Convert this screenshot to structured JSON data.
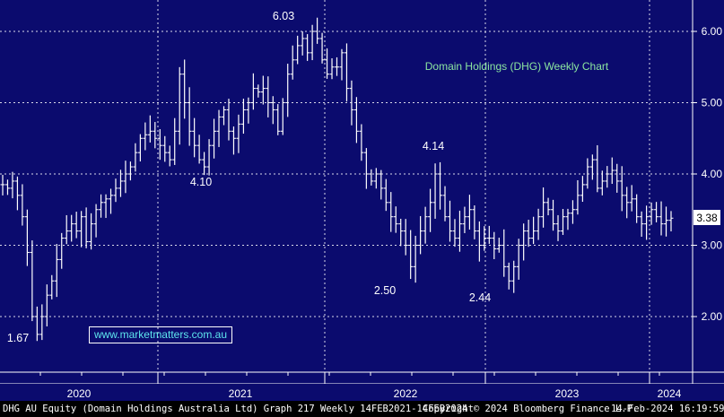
{
  "chart_data": {
    "type": "ohlc",
    "title": "Domain Holdings (DHG) Weekly Chart",
    "watermark": "www.marketmatters.com.au",
    "y_axis": {
      "ticks": [
        "2.00",
        "3.00",
        "4.00",
        "5.00",
        "6.00"
      ],
      "ylim": [
        1.2,
        6.35
      ],
      "side": "right"
    },
    "x_axis": {
      "year_labels": [
        "2020",
        "2021",
        "2022",
        "2023",
        "2024"
      ],
      "xlim": [
        "2020-01",
        "2024-02"
      ]
    },
    "last_price": "3.38",
    "annotations": [
      {
        "text": "1.67",
        "date": "2020-03",
        "value": 1.67
      },
      {
        "text": "4.10",
        "date": "2020-10",
        "value": 4.1
      },
      {
        "text": "6.03",
        "date": "2021-05",
        "value": 6.03
      },
      {
        "text": "4.14",
        "date": "2022-02",
        "value": 4.14
      },
      {
        "text": "2.50",
        "date": "2022-09",
        "value": 2.5
      },
      {
        "text": "2.44",
        "date": "2022-12",
        "value": 2.44
      }
    ],
    "weekly_close": [
      3.85,
      3.8,
      3.9,
      3.7,
      3.4,
      2.9,
      2.0,
      1.75,
      2.0,
      2.3,
      2.5,
      2.8,
      3.1,
      3.2,
      3.3,
      3.2,
      3.4,
      3.05,
      3.3,
      3.5,
      3.6,
      3.65,
      3.7,
      3.8,
      3.9,
      4.0,
      4.1,
      4.3,
      4.5,
      4.55,
      4.6,
      4.5,
      4.4,
      4.3,
      4.2,
      4.6,
      5.4,
      5.0,
      4.6,
      4.4,
      4.2,
      4.1,
      4.4,
      4.6,
      4.8,
      4.9,
      4.6,
      4.5,
      4.7,
      4.9,
      5.0,
      5.2,
      5.15,
      5.2,
      5.0,
      4.9,
      4.6,
      5.0,
      5.4,
      5.6,
      5.8,
      5.9,
      5.7,
      6.0,
      5.9,
      5.6,
      5.4,
      5.5,
      5.5,
      5.7,
      5.2,
      4.9,
      4.6,
      4.3,
      4.0,
      3.9,
      4.0,
      3.8,
      3.6,
      3.4,
      3.3,
      3.2,
      3.0,
      2.7,
      3.0,
      3.2,
      3.4,
      3.6,
      4.0,
      3.7,
      3.4,
      3.2,
      3.1,
      3.3,
      3.4,
      3.5,
      3.2,
      3.0,
      3.1,
      3.1,
      2.95,
      3.0,
      2.7,
      2.5,
      2.7,
      3.0,
      3.2,
      3.1,
      3.2,
      3.4,
      3.6,
      3.5,
      3.3,
      3.2,
      3.4,
      3.45,
      3.5,
      3.7,
      3.85,
      4.1,
      4.2,
      3.8,
      3.9,
      4.0,
      4.05,
      3.9,
      3.7,
      3.6,
      3.65,
      3.4,
      3.3,
      3.4,
      3.5,
      3.4,
      3.3,
      3.35,
      3.38
    ]
  },
  "labels": {
    "year_2020": "2020",
    "year_2021": "2021",
    "year_2022": "2022",
    "year_2023": "2023",
    "year_2024": "2024"
  },
  "footer": {
    "security": "DHG AU Equity (Domain Holdings Australia Ltd) Graph 217  Weekly 14FEB2021-14FEB2024",
    "copyright": "Copyright© 2024 Bloomberg Finance L.P.",
    "timestamp": "14-Feb-2024 16:19:59"
  },
  "colors": {
    "background": "#0b0b6e",
    "bars": "#ffffff",
    "title": "#8be4a0",
    "watermark": "#5ee6ee",
    "last_price_tag": "#ffffff"
  }
}
